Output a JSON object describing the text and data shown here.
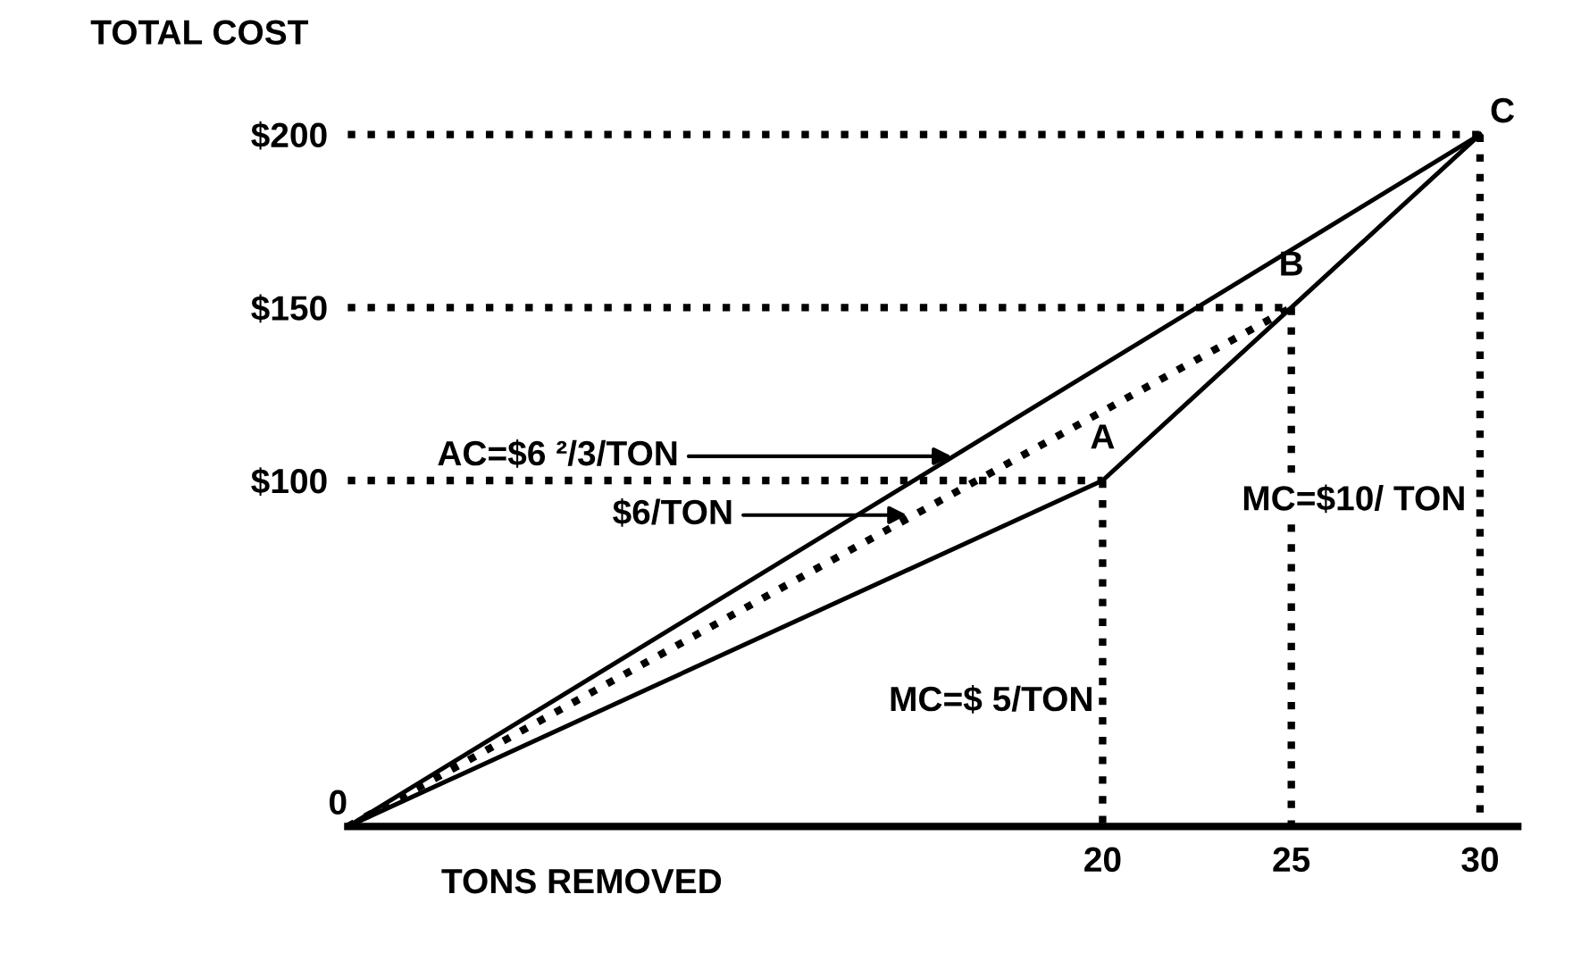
{
  "chart_data": {
    "type": "line",
    "ylabel": "TOTAL COST",
    "xlabel": "TONS REMOVED",
    "xlim": [
      0,
      31
    ],
    "ylim": [
      0,
      200
    ],
    "xticks": [
      20,
      25,
      30
    ],
    "yticks": [
      {
        "value": 100,
        "label": "$100"
      },
      {
        "value": 150,
        "label": "$150"
      },
      {
        "value": 200,
        "label": "$200"
      }
    ],
    "grid": false,
    "legend": false,
    "marker": "none",
    "series": [
      {
        "type": "line",
        "color": "#000000",
        "line_style": "solid",
        "x": [
          0,
          20,
          25,
          30
        ],
        "values": [
          0,
          100,
          150,
          200
        ]
      },
      {
        "type": "line",
        "color": "#000000",
        "line_style": "solid",
        "x": [
          0,
          30
        ],
        "values": [
          0,
          200
        ]
      },
      {
        "type": "line",
        "color": "#000000",
        "line_style": "dotted",
        "x": [
          0,
          25
        ],
        "values": [
          0,
          150
        ]
      },
      {
        "type": "line",
        "color": "#000000",
        "line_style": "dotted",
        "x": [
          0,
          20
        ],
        "values": [
          100,
          100
        ]
      },
      {
        "type": "line",
        "color": "#000000",
        "line_style": "dotted",
        "x": [
          0,
          25
        ],
        "values": [
          150,
          150
        ]
      },
      {
        "type": "line",
        "color": "#000000",
        "line_style": "dotted",
        "x": [
          0,
          30
        ],
        "values": [
          200,
          200
        ]
      },
      {
        "type": "line",
        "color": "#000000",
        "line_style": "dotted",
        "x": [
          20,
          20
        ],
        "values": [
          100,
          0
        ]
      },
      {
        "type": "line",
        "color": "#000000",
        "line_style": "dotted",
        "x": [
          25,
          25
        ],
        "values": [
          150,
          0
        ]
      },
      {
        "type": "line",
        "color": "#000000",
        "line_style": "dotted",
        "x": [
          30,
          30
        ],
        "values": [
          200,
          0
        ]
      }
    ],
    "annotations": [
      {
        "text": "0",
        "x": 0,
        "y": 0
      },
      {
        "text": "A",
        "x": 20,
        "y": 100
      },
      {
        "text": "B",
        "x": 25,
        "y": 150
      },
      {
        "text": "C",
        "x": 30,
        "y": 200
      },
      {
        "text": "AC=$6 ²/3/TON",
        "x": 16,
        "y": 107
      },
      "$6/TON",
      "MC=$ 5/TON",
      "MC=$10/ TON"
    ]
  }
}
